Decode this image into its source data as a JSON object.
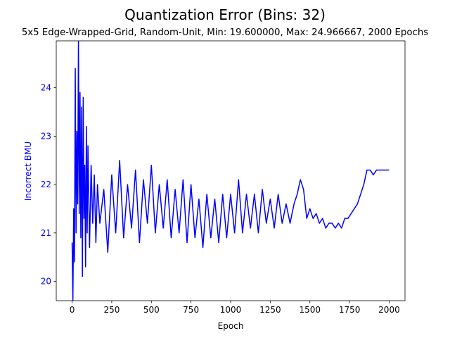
{
  "chart_data": {
    "type": "line",
    "title": "Quantization Error (Bins: 32)",
    "subtitle": "5x5 Edge-Wrapped-Grid, Random-Unit, Min: 19.600000, Max: 24.966667, 2000 Epochs",
    "xlabel": "Epoch",
    "ylabel": "Incorrect BMU",
    "xlim": [
      -100,
      2100
    ],
    "ylim": [
      19.6,
      24.97
    ],
    "xticks": [
      0,
      250,
      500,
      750,
      1000,
      1250,
      1500,
      1750,
      2000
    ],
    "yticks": [
      20,
      21,
      22,
      23,
      24
    ],
    "grid": false,
    "line_color": "#0000ff",
    "axis_label_color": "#0000ff",
    "series": [
      {
        "values_summary": "noisy line over 2000 epochs",
        "x": [
          0,
          5,
          10,
          15,
          20,
          25,
          30,
          35,
          40,
          45,
          50,
          55,
          60,
          65,
          70,
          75,
          80,
          85,
          90,
          95,
          100,
          110,
          120,
          130,
          140,
          150,
          160,
          175,
          200,
          225,
          250,
          275,
          300,
          325,
          350,
          375,
          400,
          425,
          450,
          475,
          500,
          525,
          550,
          575,
          600,
          625,
          650,
          675,
          700,
          725,
          750,
          775,
          800,
          825,
          850,
          875,
          900,
          925,
          950,
          975,
          1000,
          1025,
          1050,
          1075,
          1100,
          1125,
          1150,
          1175,
          1200,
          1225,
          1250,
          1275,
          1300,
          1325,
          1350,
          1375,
          1400,
          1420,
          1440,
          1460,
          1480,
          1500,
          1520,
          1540,
          1560,
          1580,
          1600,
          1620,
          1640,
          1660,
          1680,
          1700,
          1720,
          1740,
          1760,
          1780,
          1800,
          1820,
          1840,
          1860,
          1880,
          1900,
          1920,
          1940,
          1960,
          1980,
          2000
        ],
        "y": [
          20.8,
          19.6,
          21.5,
          20.4,
          24.4,
          21.0,
          23.1,
          21.6,
          24.97,
          21.4,
          23.9,
          20.9,
          23.6,
          20.1,
          23.8,
          21.3,
          22.4,
          20.3,
          23.2,
          21.0,
          22.8,
          20.7,
          22.4,
          21.2,
          22.2,
          20.8,
          22.0,
          21.2,
          21.9,
          20.6,
          22.2,
          21.0,
          22.5,
          20.9,
          22.0,
          21.1,
          22.3,
          20.8,
          22.1,
          21.2,
          22.4,
          21.0,
          22.0,
          21.1,
          22.1,
          20.9,
          21.9,
          21.0,
          22.1,
          20.8,
          22.0,
          20.9,
          21.7,
          20.7,
          21.8,
          20.9,
          21.7,
          20.8,
          21.8,
          20.9,
          21.8,
          21.0,
          22.1,
          21.0,
          21.8,
          21.1,
          21.8,
          21.0,
          21.9,
          21.2,
          21.7,
          21.1,
          21.8,
          21.2,
          21.6,
          21.2,
          21.6,
          21.8,
          22.1,
          21.9,
          21.3,
          21.5,
          21.3,
          21.4,
          21.2,
          21.3,
          21.1,
          21.2,
          21.2,
          21.1,
          21.2,
          21.1,
          21.3,
          21.3,
          21.4,
          21.5,
          21.6,
          21.8,
          22.0,
          22.3,
          22.3,
          22.2,
          22.3,
          22.3,
          22.3,
          22.3,
          22.3
        ]
      }
    ]
  }
}
